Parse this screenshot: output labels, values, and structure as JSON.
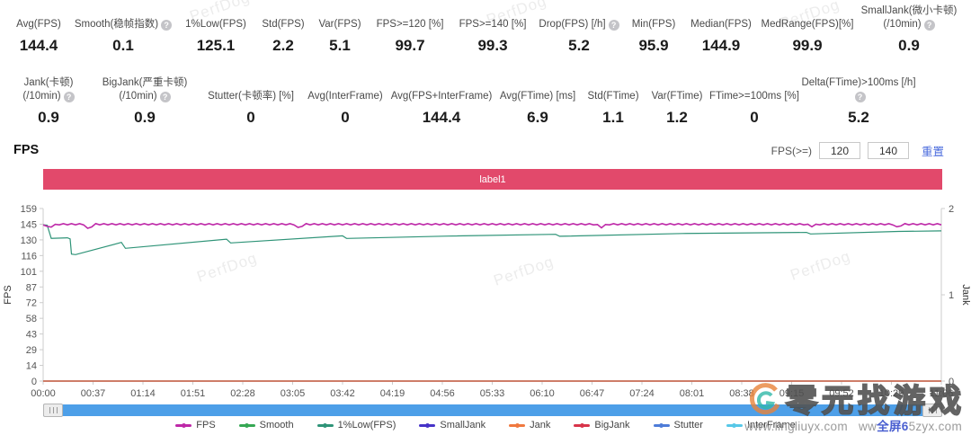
{
  "metrics_row1": [
    {
      "label": "Avg(FPS)",
      "value": "144.4",
      "help": false
    },
    {
      "label": "Smooth(稳帧指数)",
      "value": "0.1",
      "help": true
    },
    {
      "label": "1%Low(FPS)",
      "value": "125.1",
      "help": false
    },
    {
      "label": "Std(FPS)",
      "value": "2.2",
      "help": false
    },
    {
      "label": "Var(FPS)",
      "value": "5.1",
      "help": false
    },
    {
      "label": "FPS>=120 [%]",
      "value": "99.7",
      "help": false
    },
    {
      "label": "FPS>=140 [%]",
      "value": "99.3",
      "help": false
    },
    {
      "label": "Drop(FPS) [/h]",
      "value": "5.2",
      "help": true
    },
    {
      "label": "Min(FPS)",
      "value": "95.9",
      "help": false
    },
    {
      "label": "Median(FPS)",
      "value": "144.9",
      "help": false
    },
    {
      "label": "MedRange(FPS)[%]",
      "value": "99.9",
      "help": false
    },
    {
      "label": "SmallJank(微小卡顿)\n(/10min)",
      "value": "0.9",
      "help": true
    }
  ],
  "metrics_row2": [
    {
      "label": "Jank(卡顿)\n(/10min)",
      "value": "0.9",
      "help": true
    },
    {
      "label": "BigJank(严重卡顿)\n(/10min)",
      "value": "0.9",
      "help": true
    },
    {
      "label": "Stutter(卡顿率) [%]",
      "value": "0",
      "help": false
    },
    {
      "label": "Avg(InterFrame)",
      "value": "0",
      "help": false
    },
    {
      "label": "Avg(FPS+InterFrame)",
      "value": "144.4",
      "help": false
    },
    {
      "label": "Avg(FTime) [ms]",
      "value": "6.9",
      "help": false
    },
    {
      "label": "Std(FTime)",
      "value": "1.1",
      "help": false
    },
    {
      "label": "Var(FTime)",
      "value": "1.2",
      "help": false
    },
    {
      "label": "FTime>=100ms [%]",
      "value": "0",
      "help": false
    },
    {
      "label": "Delta(FTime)>100ms [/h]",
      "value": "5.2",
      "help": true
    }
  ],
  "section": {
    "title": "FPS",
    "filter_label": "FPS(>=)",
    "input1": "120",
    "input2": "140",
    "reset": "重置"
  },
  "label_bar": "label1",
  "chart_data": {
    "type": "line",
    "title": "FPS",
    "x_axis": {
      "ticks": [
        "00:00",
        "00:37",
        "01:14",
        "01:51",
        "02:28",
        "03:05",
        "03:42",
        "04:19",
        "04:56",
        "05:33",
        "06:10",
        "06:47",
        "07:24",
        "08:01",
        "08:38",
        "09:15",
        "09:52",
        "10:29",
        "11:06"
      ],
      "range_seconds": [
        0,
        666
      ]
    },
    "y_left": {
      "label": "FPS",
      "ticks": [
        159,
        145,
        130,
        116,
        101,
        87,
        72,
        58,
        43,
        29,
        14,
        0
      ],
      "range": [
        0,
        159
      ]
    },
    "y_right": {
      "label": "Jank",
      "ticks": [
        2,
        1,
        0
      ],
      "range": [
        0,
        2
      ]
    },
    "grid": false,
    "series": [
      {
        "name": "Smooth",
        "color": "#36A854",
        "width": 1.2,
        "points": [
          [
            0,
            0
          ],
          [
            666,
            0
          ]
        ]
      },
      {
        "name": "InterFrame",
        "color": "#57C8E8",
        "width": 1.2,
        "points": [
          [
            0,
            0
          ],
          [
            666,
            0
          ]
        ]
      },
      {
        "name": "Stutter",
        "color": "#4E7CD8",
        "width": 1.2,
        "points": [
          [
            0,
            0
          ],
          [
            666,
            0
          ]
        ]
      },
      {
        "name": "SmallJank",
        "color": "#4633C8",
        "width": 1.2,
        "points": [
          [
            0,
            0
          ],
          [
            666,
            0
          ]
        ]
      },
      {
        "name": "BigJank",
        "color": "#D8344A",
        "width": 1.2,
        "points": [
          [
            0,
            0
          ],
          [
            666,
            0
          ]
        ]
      },
      {
        "name": "Jank",
        "color": "#F0793F",
        "width": 1.2,
        "points": [
          [
            0,
            0
          ],
          [
            666,
            0
          ]
        ]
      },
      {
        "name": "1%Low(FPS)",
        "color": "#2F9478",
        "width": 1.2,
        "points": [
          [
            0,
            144
          ],
          [
            3,
            143.6
          ],
          [
            6,
            131.5
          ],
          [
            18,
            132
          ],
          [
            20,
            131
          ],
          [
            21,
            117
          ],
          [
            24,
            116.5
          ],
          [
            58,
            127.8
          ],
          [
            61,
            122.3
          ],
          [
            136,
            130.8
          ],
          [
            139,
            127.3
          ],
          [
            222,
            133.8
          ],
          [
            225,
            131.4
          ],
          [
            300,
            133.6
          ],
          [
            380,
            135.2
          ],
          [
            383,
            133.4
          ],
          [
            474,
            136
          ],
          [
            566,
            137
          ],
          [
            569,
            135.6
          ],
          [
            634,
            137.9
          ],
          [
            666,
            138.4
          ]
        ]
      },
      {
        "name": "FPS",
        "color": "#BE29A8",
        "width": 1.6,
        "jitter": 0.55,
        "points": [
          [
            0,
            144.5
          ],
          [
            5,
            141.2
          ],
          [
            10,
            144.5
          ],
          [
            30,
            144.5
          ],
          [
            34,
            139.5
          ],
          [
            38,
            144.5
          ],
          [
            186,
            144.5
          ],
          [
            190,
            140.6
          ],
          [
            194,
            144.5
          ],
          [
            410,
            144.5
          ],
          [
            414,
            141.2
          ],
          [
            418,
            144.5
          ],
          [
            566,
            144.5
          ],
          [
            570,
            142.2
          ],
          [
            574,
            144.5
          ],
          [
            630,
            144.5
          ],
          [
            634,
            141.4
          ],
          [
            638,
            144.5
          ],
          [
            666,
            144.5
          ]
        ]
      }
    ]
  },
  "legend": [
    {
      "name": "FPS",
      "color": "#BE29A8"
    },
    {
      "name": "Smooth",
      "color": "#36A854"
    },
    {
      "name": "1%Low(FPS)",
      "color": "#2F9478"
    },
    {
      "name": "SmallJank",
      "color": "#4633C8"
    },
    {
      "name": "Jank",
      "color": "#F0793F"
    },
    {
      "name": "BigJank",
      "color": "#D8344A"
    },
    {
      "name": "Stutter",
      "color": "#4E7CD8"
    },
    {
      "name": "InterFrame",
      "color": "#57C8E8"
    }
  ],
  "watermark": {
    "brand": "PerfDog",
    "logo_text": "零元找游戏",
    "url1": "www.lingliuyx.com",
    "url2_prefix": "ww",
    "url2_blue": "全屏6",
    "url2_suffix": "5zyx.com"
  },
  "colors": {
    "accent_bar": "#E2496B",
    "scrollbar": "#4D9FE8",
    "link": "#4a6bdd"
  }
}
